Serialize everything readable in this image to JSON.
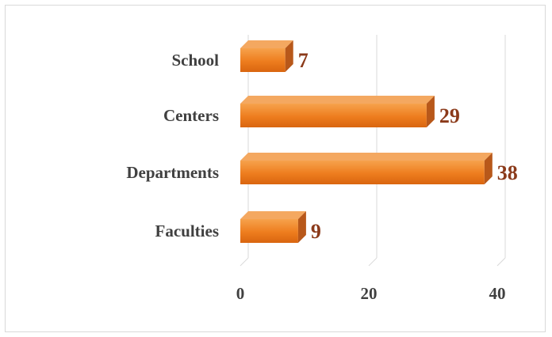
{
  "chart_data": {
    "type": "bar",
    "orientation": "horizontal",
    "style": "3d",
    "categories": [
      "Faculties",
      "Departments",
      "Centers",
      "School"
    ],
    "values": [
      9,
      38,
      29,
      7
    ],
    "xlim": [
      0,
      40
    ],
    "x_ticks": [
      "0",
      "20",
      "40"
    ],
    "data_labels": [
      "9",
      "38",
      "29",
      "7"
    ],
    "title": "",
    "xlabel": "",
    "ylabel": "",
    "grid": true,
    "legend": "none",
    "colors": {
      "bar_front": "#ee7d1e",
      "bar_top": "#f4a860",
      "bar_side": "#b8581a",
      "data_label": "#8b3a1a",
      "gridline": "#d9d9d9"
    }
  }
}
